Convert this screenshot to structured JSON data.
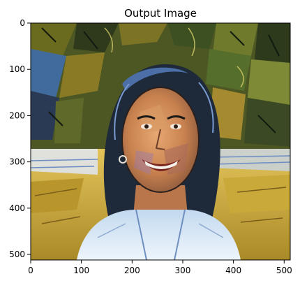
{
  "figure": {
    "title": "Output Image",
    "x_axis": {
      "ticks": [
        {
          "value": 0,
          "label": "0"
        },
        {
          "value": 100,
          "label": "100"
        },
        {
          "value": 200,
          "label": "200"
        },
        {
          "value": 300,
          "label": "300"
        },
        {
          "value": 400,
          "label": "400"
        },
        {
          "value": 500,
          "label": "500"
        }
      ],
      "range": [
        0,
        512
      ]
    },
    "y_axis": {
      "ticks": [
        {
          "value": 0,
          "label": "0"
        },
        {
          "value": 100,
          "label": "100"
        },
        {
          "value": 200,
          "label": "200"
        },
        {
          "value": 300,
          "label": "300"
        },
        {
          "value": 400,
          "label": "400"
        },
        {
          "value": 500,
          "label": "500"
        }
      ],
      "range": [
        0,
        512
      ],
      "inverted": true
    },
    "image": {
      "subject": "stylized painted portrait of a smiling woman with dark hair pulled back, in front of foliage and a sunlit field",
      "style": "cubist / abstract painting style transfer",
      "palette": {
        "foliage_dark": "#2f3a1d",
        "foliage_olive": "#6b6b1f",
        "foliage_green": "#4f6a2a",
        "sky_blue": "#3f6db3",
        "orange": "#d9822b",
        "field_yellow": "#d6b039",
        "field_light": "#dfe6f2",
        "skin": "#c98252",
        "skin_highlight": "#e0a46e",
        "hair": "#1e2a3a",
        "shirt": "#a8c6e6",
        "shirt_light": "#e8f1fb"
      }
    }
  }
}
